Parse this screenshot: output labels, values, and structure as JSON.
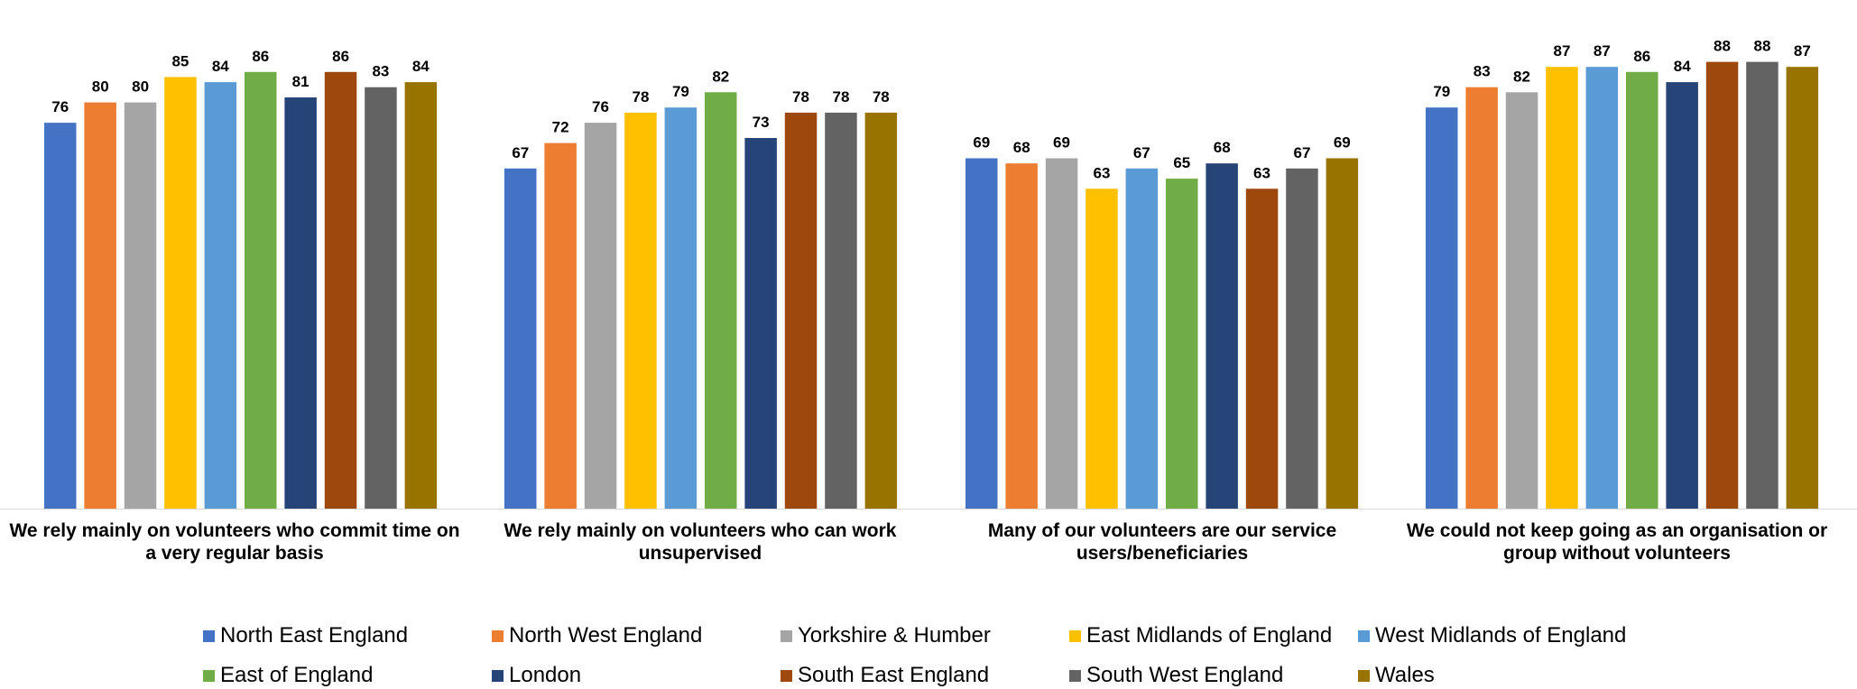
{
  "chart_data": {
    "type": "bar",
    "categories": [
      "We rely mainly on volunteers who commit time on a very regular basis",
      "We rely mainly on volunteers who can work unsupervised",
      "Many of our volunteers are our service users/beneficiaries",
      "We could not keep going as an organisation or group without volunteers"
    ],
    "series": [
      {
        "name": "North East England",
        "color": "#4472C4",
        "values": [
          76,
          67,
          69,
          79
        ]
      },
      {
        "name": "North West England",
        "color": "#ED7D31",
        "values": [
          80,
          72,
          68,
          83
        ]
      },
      {
        "name": "Yorkshire & Humber",
        "color": "#A5A5A5",
        "values": [
          80,
          76,
          69,
          82
        ]
      },
      {
        "name": "East Midlands of England",
        "color": "#FFC000",
        "values": [
          85,
          78,
          63,
          87
        ]
      },
      {
        "name": "West Midlands of England",
        "color": "#5B9BD5",
        "values": [
          84,
          79,
          67,
          87
        ]
      },
      {
        "name": "East of England",
        "color": "#70AD47",
        "values": [
          86,
          82,
          65,
          86
        ]
      },
      {
        "name": "London",
        "color": "#264478",
        "values": [
          81,
          73,
          68,
          84
        ]
      },
      {
        "name": "South East England",
        "color": "#9E480E",
        "values": [
          86,
          78,
          63,
          88
        ]
      },
      {
        "name": "South West England",
        "color": "#636363",
        "values": [
          83,
          78,
          67,
          88
        ]
      },
      {
        "name": "Wales",
        "color": "#997300",
        "values": [
          84,
          78,
          69,
          87
        ]
      }
    ],
    "data_labels": true,
    "grid": false,
    "legend_position": "bottom",
    "category_labels_lines": [
      [
        "We rely mainly on volunteers who commit time on",
        "a very regular basis"
      ],
      [
        "We rely mainly on volunteers who can work",
        "unsupervised"
      ],
      [
        "Many of our volunteers are our service",
        "users/beneficiaries"
      ],
      [
        "We could not keep going as an organisation or",
        "group without volunteers"
      ]
    ]
  }
}
